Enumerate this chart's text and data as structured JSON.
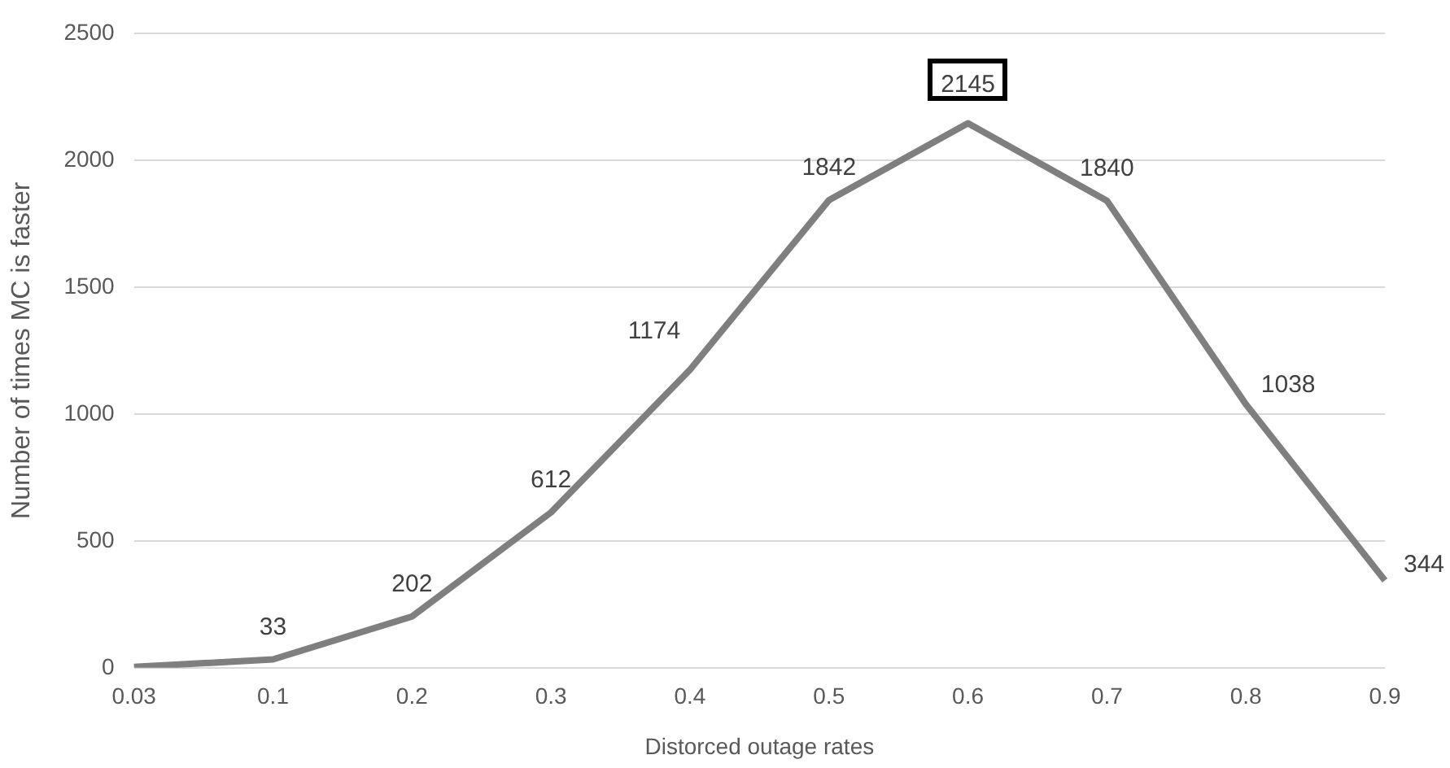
{
  "chart_data": {
    "type": "line",
    "xlabel": "Distorced outage rates",
    "ylabel": "Number of times MC is faster",
    "categories": [
      "0.03",
      "0.1",
      "0.2",
      "0.3",
      "0.4",
      "0.5",
      "0.6",
      "0.7",
      "0.8",
      "0.9"
    ],
    "values": [
      3,
      33,
      202,
      612,
      1174,
      1842,
      2145,
      1840,
      1038,
      344
    ],
    "value_labels": [
      null,
      "33",
      "202",
      "612",
      "1174",
      "1842",
      "2145",
      "1840",
      "1038",
      "344"
    ],
    "color": "#7f7f7f",
    "ylim": [
      0,
      2500
    ],
    "yticks": [
      0,
      500,
      1000,
      1500,
      2000,
      2500
    ],
    "grid": "y",
    "legend": false,
    "marker": "none",
    "line_style": "solid"
  }
}
